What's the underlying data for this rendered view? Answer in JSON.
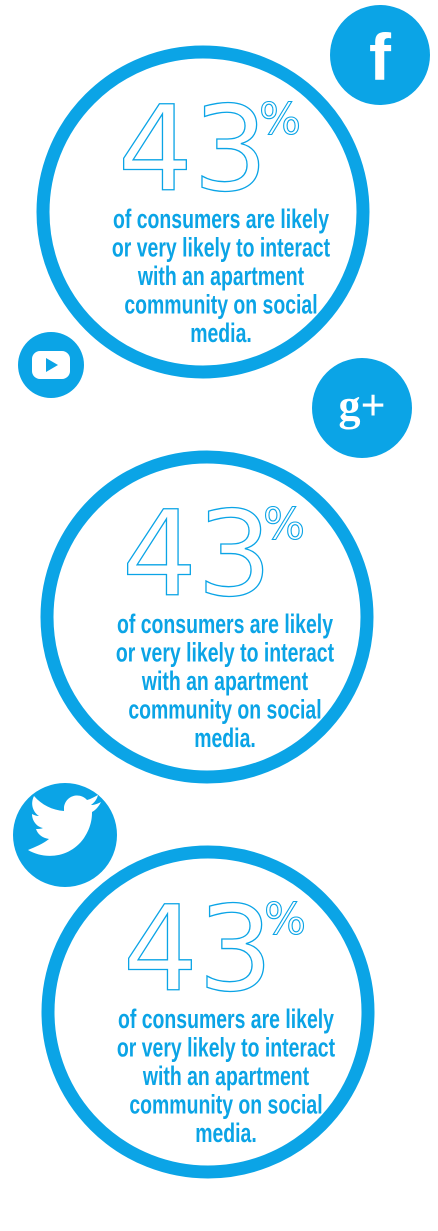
{
  "icons": {
    "facebook": "f",
    "google_plus": "g+"
  },
  "panels": [
    {
      "stat": "43",
      "unit": "%",
      "lines": [
        "of consumers are likely",
        "or very likely to interact",
        "with an apartment",
        "community on social",
        "media."
      ]
    },
    {
      "stat": "43",
      "unit": "%",
      "lines": [
        "of consumers are likely",
        "or very likely to interact",
        "with an apartment",
        "community on social",
        "media."
      ]
    },
    {
      "stat": "43",
      "unit": "%",
      "lines": [
        "of consumers are likely",
        "or very likely to interact",
        "with an apartment",
        "community on social",
        "media."
      ]
    }
  ]
}
